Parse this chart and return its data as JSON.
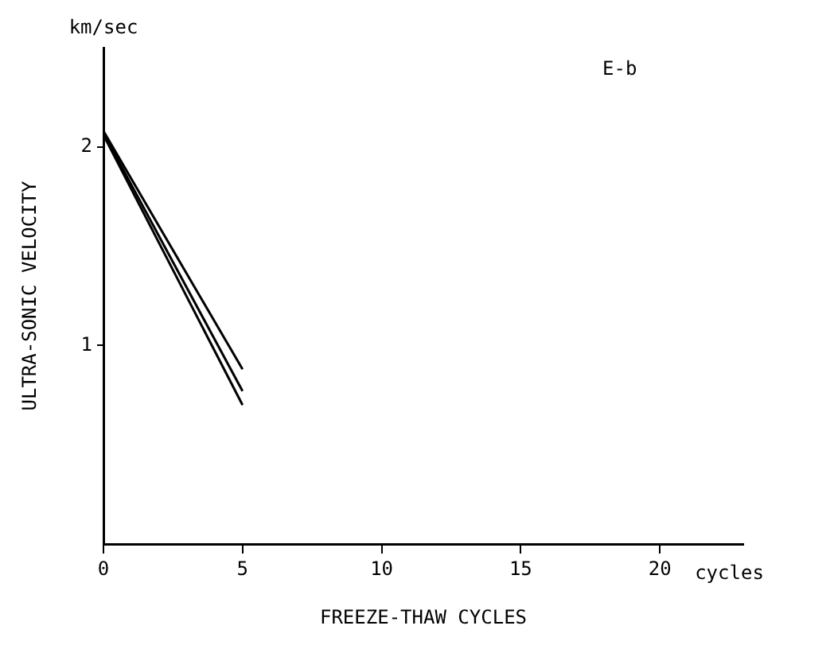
{
  "chart_data": {
    "type": "line",
    "xlabel": "FREEZE-THAW CYCLES",
    "ylabel": "ULTRA-SONIC VELOCITY",
    "annotations": [
      "E-b",
      "km/sec",
      "cycles"
    ],
    "x": [
      0,
      5
    ],
    "series": [
      {
        "color": "#000000",
        "values": [
          2.08,
          0.88
        ]
      },
      {
        "color": "#000000",
        "values": [
          2.07,
          0.77
        ]
      },
      {
        "color": "#000000",
        "values": [
          2.06,
          0.7
        ]
      }
    ],
    "xlim": [
      0,
      23
    ],
    "xticks": [
      0,
      5,
      10,
      15,
      20
    ],
    "ylim": [
      0,
      2.5
    ],
    "yticks": [
      1,
      2
    ],
    "grid": false,
    "legend": false,
    "marker": "none",
    "line_style": "solid"
  }
}
